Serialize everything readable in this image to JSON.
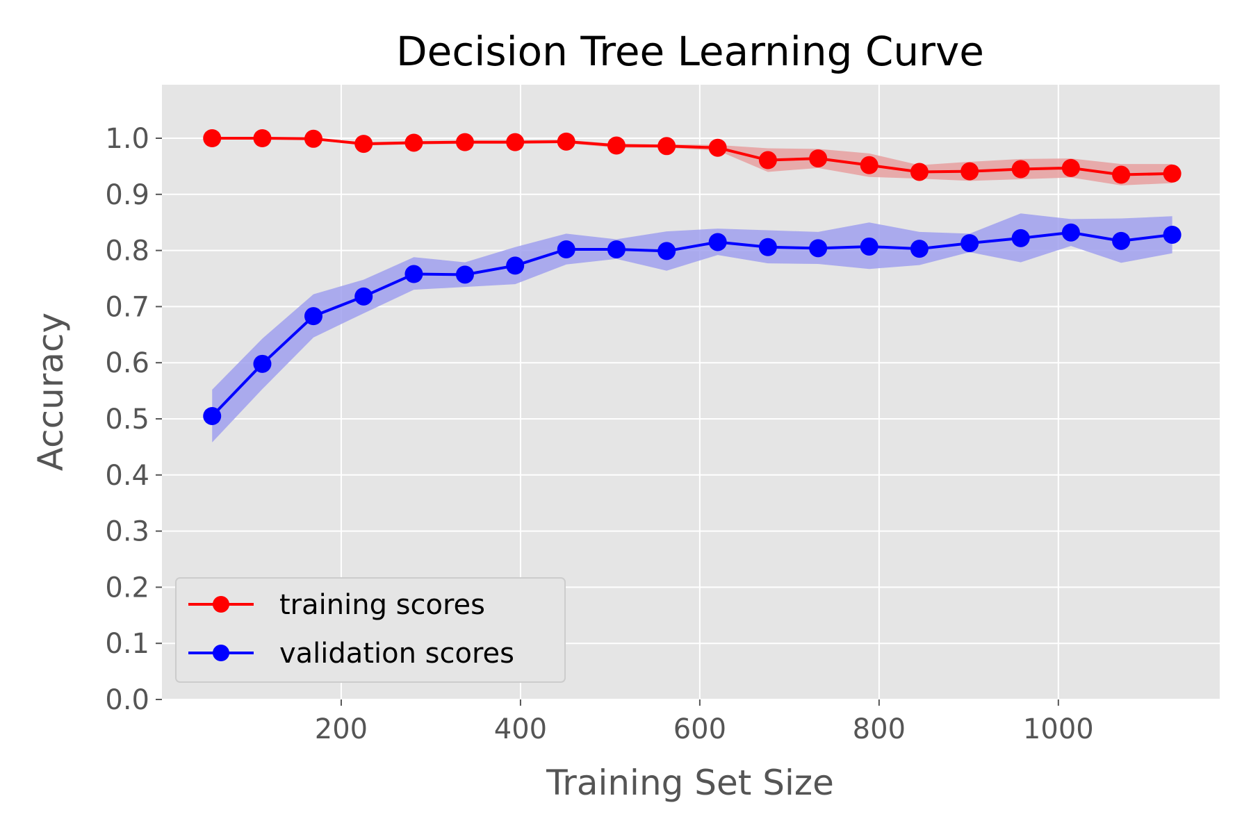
{
  "chart_data": {
    "type": "line",
    "title": "Decision Tree Learning Curve",
    "xlabel": "Training Set Size",
    "ylabel": "Accuracy",
    "xlim": [
      0,
      1180
    ],
    "ylim": [
      0.0,
      1.1
    ],
    "xticks": [
      200,
      400,
      600,
      800,
      1000
    ],
    "xtick_labels": [
      "200",
      "400",
      "600",
      "800",
      "1000"
    ],
    "yticks": [
      0.0,
      0.1,
      0.2,
      0.3,
      0.4,
      0.5,
      0.6,
      0.7,
      0.8,
      0.9,
      1.0
    ],
    "ytick_labels": [
      "0.0",
      "0.1",
      "0.2",
      "0.3",
      "0.4",
      "0.5",
      "0.6",
      "0.7",
      "0.8",
      "0.9",
      "1.0"
    ],
    "grid": true,
    "legend_position": "lower-left",
    "background_color": "#e5e5e5",
    "x": [
      56,
      112,
      169,
      225,
      281,
      338,
      394,
      451,
      507,
      563,
      620,
      676,
      732,
      789,
      845,
      901,
      958,
      1014,
      1070,
      1127
    ],
    "series": [
      {
        "name": "training scores",
        "color": "#ff0000",
        "band_color": "#e8a0a0",
        "values": [
          1.0,
          1.0,
          0.999,
          0.99,
          0.992,
          0.993,
          0.993,
          0.994,
          0.987,
          0.986,
          0.983,
          0.961,
          0.964,
          0.952,
          0.94,
          0.941,
          0.945,
          0.947,
          0.935,
          0.937
        ],
        "lower": [
          1.0,
          1.0,
          0.997,
          0.987,
          0.989,
          0.99,
          0.99,
          0.991,
          0.983,
          0.983,
          0.978,
          0.94,
          0.947,
          0.931,
          0.928,
          0.924,
          0.927,
          0.93,
          0.916,
          0.92
        ],
        "upper": [
          1.0,
          1.0,
          1.0,
          0.993,
          0.995,
          0.996,
          0.996,
          0.997,
          0.99,
          0.989,
          0.988,
          0.982,
          0.981,
          0.973,
          0.952,
          0.958,
          0.963,
          0.964,
          0.954,
          0.954
        ]
      },
      {
        "name": "validation scores",
        "color": "#0000ff",
        "band_color": "#a0a0ee",
        "values": [
          0.505,
          0.598,
          0.683,
          0.718,
          0.758,
          0.757,
          0.773,
          0.802,
          0.802,
          0.799,
          0.815,
          0.806,
          0.804,
          0.807,
          0.803,
          0.813,
          0.822,
          0.832,
          0.817,
          0.828
        ],
        "lower": [
          0.458,
          0.553,
          0.645,
          0.688,
          0.73,
          0.735,
          0.74,
          0.775,
          0.785,
          0.764,
          0.792,
          0.777,
          0.776,
          0.767,
          0.774,
          0.797,
          0.779,
          0.808,
          0.778,
          0.795
        ],
        "upper": [
          0.552,
          0.643,
          0.722,
          0.748,
          0.788,
          0.779,
          0.806,
          0.83,
          0.82,
          0.834,
          0.839,
          0.836,
          0.833,
          0.85,
          0.833,
          0.83,
          0.866,
          0.856,
          0.857,
          0.861
        ]
      }
    ]
  }
}
